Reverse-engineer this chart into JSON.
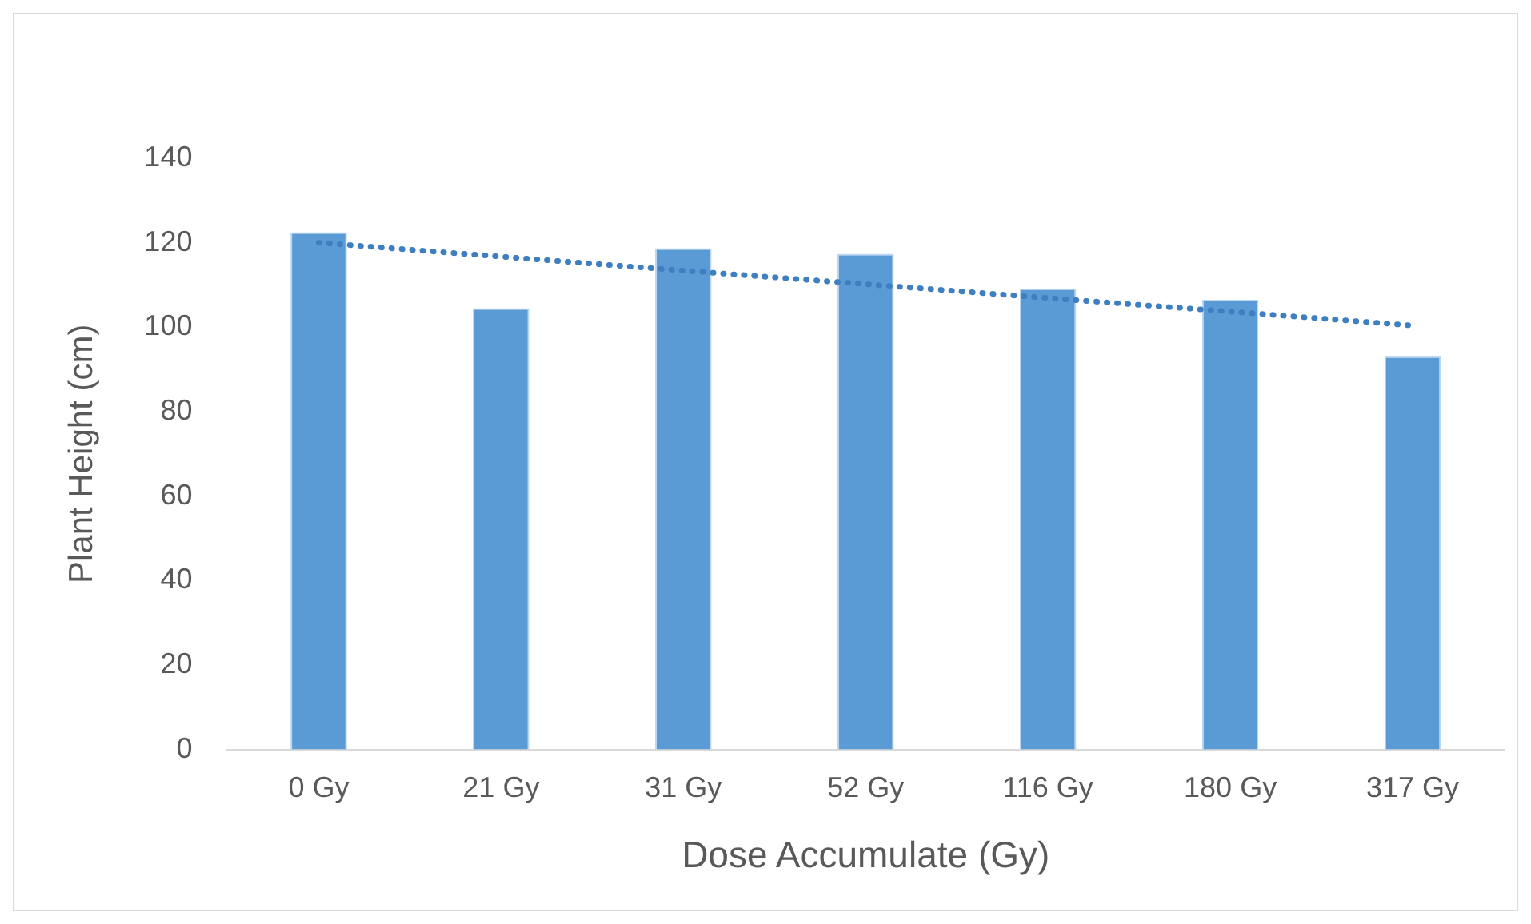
{
  "chart_data": {
    "type": "bar",
    "xlabel": "Dose Accumulate (Gy)",
    "ylabel": "Plant Height (cm)",
    "categories": [
      "0 Gy",
      "21 Gy",
      "31 Gy",
      "52 Gy",
      "116 Gy",
      "180 Gy",
      "317 Gy"
    ],
    "series": [
      {
        "color": "#5b9bd5",
        "values": [
          122.5,
          104.5,
          118.7,
          117.4,
          109.2,
          106.5,
          93.1
        ]
      },
      {
        "type": "line",
        "color": "#3f7fc0",
        "line_style": "dotted",
        "marker": "none",
        "values": [
          120,
          116.7,
          113.4,
          110.2,
          106.9,
          103.7,
          100.4
        ]
      }
    ],
    "ylim": [
      0,
      140
    ],
    "yticks": [
      0,
      20,
      40,
      60,
      80,
      100,
      120,
      140
    ],
    "grid": false,
    "legend": false
  }
}
